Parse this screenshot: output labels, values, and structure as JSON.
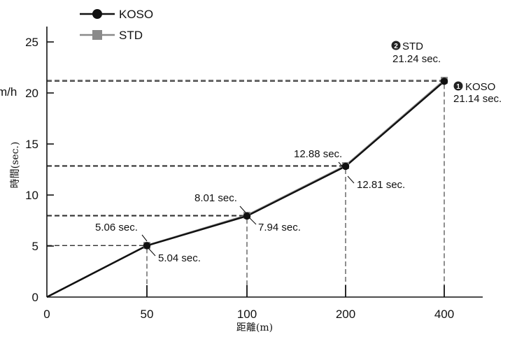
{
  "chart_data": {
    "type": "line",
    "categories": [
      "0",
      "50",
      "100",
      "200",
      "400"
    ],
    "x_tick_labels": [
      "0",
      "50",
      "100",
      "200",
      "400"
    ],
    "y_ticks": [
      0,
      5,
      10,
      15,
      20,
      25
    ],
    "ylim": [
      0,
      26
    ],
    "xlabel": "距離(m)",
    "ylabel": "時間(sec.)",
    "ylabel_clipped": "m/h",
    "grid": false,
    "legend_position": "top-left",
    "series": [
      {
        "name": "KOSO",
        "marker": "circle",
        "color": "#111111",
        "values": [
          0,
          5.04,
          7.94,
          12.81,
          21.14
        ],
        "labels": [
          "",
          "5.04 sec.",
          "7.94 sec.",
          "12.81 sec.",
          "21.14 sec."
        ],
        "final_label_name": "KOSO",
        "badge": "1"
      },
      {
        "name": "STD",
        "marker": "square",
        "color": "#8a8a8a",
        "values": [
          0,
          5.06,
          8.01,
          12.88,
          21.24
        ],
        "labels": [
          "",
          "5.06 sec.",
          "8.01 sec.",
          "12.88 sec.",
          "21.24 sec."
        ],
        "final_label_name": "STD",
        "badge": "2"
      }
    ]
  }
}
